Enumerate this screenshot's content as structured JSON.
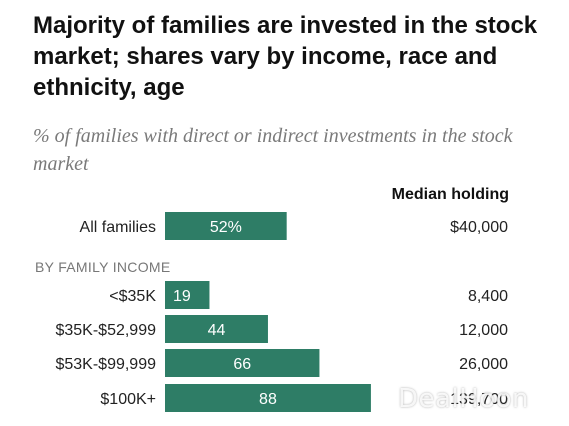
{
  "title": "Majority of families are invested in the stock market; shares vary by income, race and ethnicity, age",
  "subtitle": "% of families with direct or indirect investments in the stock market",
  "median_header": "Median holding",
  "section_label": "BY FAMILY INCOME",
  "watermark": "DealHoon",
  "colors": {
    "bar": "#2e7d66",
    "bar_text": "#ffffff",
    "label": "#222222"
  },
  "chart_data": {
    "type": "bar",
    "orientation": "horizontal",
    "title": "Majority of families are invested in the stock market; shares vary by income, race and ethnicity, age",
    "subtitle": "% of families with direct or indirect investments in the stock market",
    "xlim": [
      0,
      100
    ],
    "grid": false,
    "rows": [
      {
        "category": "All families",
        "value": 52,
        "value_label": "52%",
        "median": "$40,000",
        "group": ""
      },
      {
        "category": "<$35K",
        "value": 19,
        "value_label": "19",
        "median": "8,400",
        "group": "BY FAMILY INCOME"
      },
      {
        "category": "$35K-$52,999",
        "value": 44,
        "value_label": "44",
        "median": "12,000",
        "group": "BY FAMILY INCOME"
      },
      {
        "category": "$53K-$99,999",
        "value": 66,
        "value_label": "66",
        "median": "26,000",
        "group": "BY FAMILY INCOME"
      },
      {
        "category": "$100K+",
        "value": 88,
        "value_label": "88",
        "median": "139,700",
        "group": "BY FAMILY INCOME"
      }
    ]
  }
}
